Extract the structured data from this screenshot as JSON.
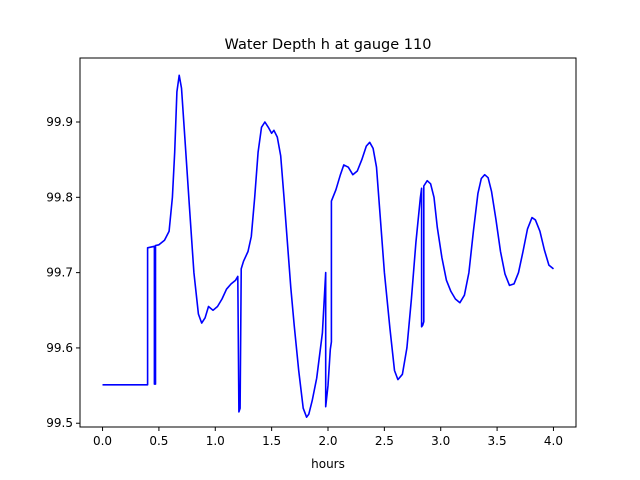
{
  "chart_data": {
    "type": "line",
    "title": "Water Depth h at gauge 110",
    "xlabel": "hours",
    "ylabel": "",
    "xlim": [
      -0.2,
      4.2
    ],
    "ylim": [
      99.495,
      99.985
    ],
    "xticks": [
      0.0,
      0.5,
      1.0,
      1.5,
      2.0,
      2.5,
      3.0,
      3.5,
      4.0
    ],
    "xtick_labels": [
      "0.0",
      "0.5",
      "1.0",
      "1.5",
      "2.0",
      "2.5",
      "3.0",
      "3.5",
      "4.0"
    ],
    "yticks": [
      99.5,
      99.6,
      99.7,
      99.8,
      99.9
    ],
    "ytick_labels": [
      "99.5",
      "99.6",
      "99.7",
      "99.8",
      "99.9"
    ],
    "grid": false,
    "colors": {
      "line": "#0000ff",
      "axes": "#000000"
    },
    "series": [
      {
        "x": [
          0.0,
          0.2,
          0.4,
          0.4,
          0.46,
          0.46,
          0.47,
          0.47,
          0.5,
          0.55,
          0.59,
          0.62,
          0.64,
          0.66,
          0.68,
          0.7,
          0.73,
          0.77,
          0.81,
          0.85,
          0.88,
          0.91,
          0.94,
          0.98,
          1.02,
          1.06,
          1.1,
          1.14,
          1.18,
          1.2,
          1.21,
          1.22,
          1.23,
          1.23,
          1.25,
          1.29,
          1.32,
          1.35,
          1.38,
          1.41,
          1.44,
          1.47,
          1.5,
          1.52,
          1.55,
          1.58,
          1.61,
          1.64,
          1.67,
          1.7,
          1.74,
          1.78,
          1.81,
          1.83,
          1.86,
          1.9,
          1.95,
          1.98,
          1.98,
          2.0,
          2.02,
          2.03,
          2.03,
          2.07,
          2.11,
          2.14,
          2.18,
          2.22,
          2.26,
          2.3,
          2.34,
          2.37,
          2.4,
          2.43,
          2.46,
          2.5,
          2.55,
          2.59,
          2.62,
          2.66,
          2.7,
          2.74,
          2.78,
          2.82,
          2.83,
          2.83,
          2.84,
          2.85,
          2.85,
          2.88,
          2.91,
          2.94,
          2.97,
          3.01,
          3.05,
          3.09,
          3.13,
          3.17,
          3.21,
          3.25,
          3.29,
          3.33,
          3.36,
          3.39,
          3.42,
          3.45,
          3.49,
          3.53,
          3.57,
          3.61,
          3.65,
          3.69,
          3.73,
          3.77,
          3.81,
          3.84,
          3.88,
          3.92,
          3.96,
          4.0
        ],
        "y": [
          99.551,
          99.551,
          99.551,
          99.733,
          99.735,
          99.552,
          99.552,
          99.736,
          99.737,
          99.743,
          99.755,
          99.8,
          99.86,
          99.94,
          99.962,
          99.945,
          99.88,
          99.79,
          99.7,
          99.645,
          99.633,
          99.64,
          99.655,
          99.65,
          99.655,
          99.665,
          99.678,
          99.685,
          99.69,
          99.695,
          99.515,
          99.52,
          99.7,
          99.705,
          99.715,
          99.728,
          99.748,
          99.8,
          99.86,
          99.893,
          99.9,
          99.893,
          99.885,
          99.889,
          99.88,
          99.855,
          99.8,
          99.74,
          99.68,
          99.63,
          99.57,
          99.52,
          99.508,
          99.512,
          99.53,
          99.56,
          99.62,
          99.7,
          99.522,
          99.55,
          99.598,
          99.608,
          99.795,
          99.81,
          99.83,
          99.843,
          99.84,
          99.83,
          99.835,
          99.85,
          99.868,
          99.873,
          99.865,
          99.84,
          99.78,
          99.7,
          99.625,
          99.57,
          99.558,
          99.565,
          99.6,
          99.665,
          99.74,
          99.8,
          99.812,
          99.628,
          99.63,
          99.635,
          99.815,
          99.822,
          99.818,
          99.8,
          99.76,
          99.72,
          99.69,
          99.675,
          99.665,
          99.66,
          99.67,
          99.7,
          99.755,
          99.805,
          99.825,
          99.83,
          99.826,
          99.808,
          99.77,
          99.728,
          99.698,
          99.683,
          99.685,
          99.7,
          99.728,
          99.758,
          99.773,
          99.77,
          99.755,
          99.73,
          99.71,
          99.705
        ]
      }
    ]
  }
}
